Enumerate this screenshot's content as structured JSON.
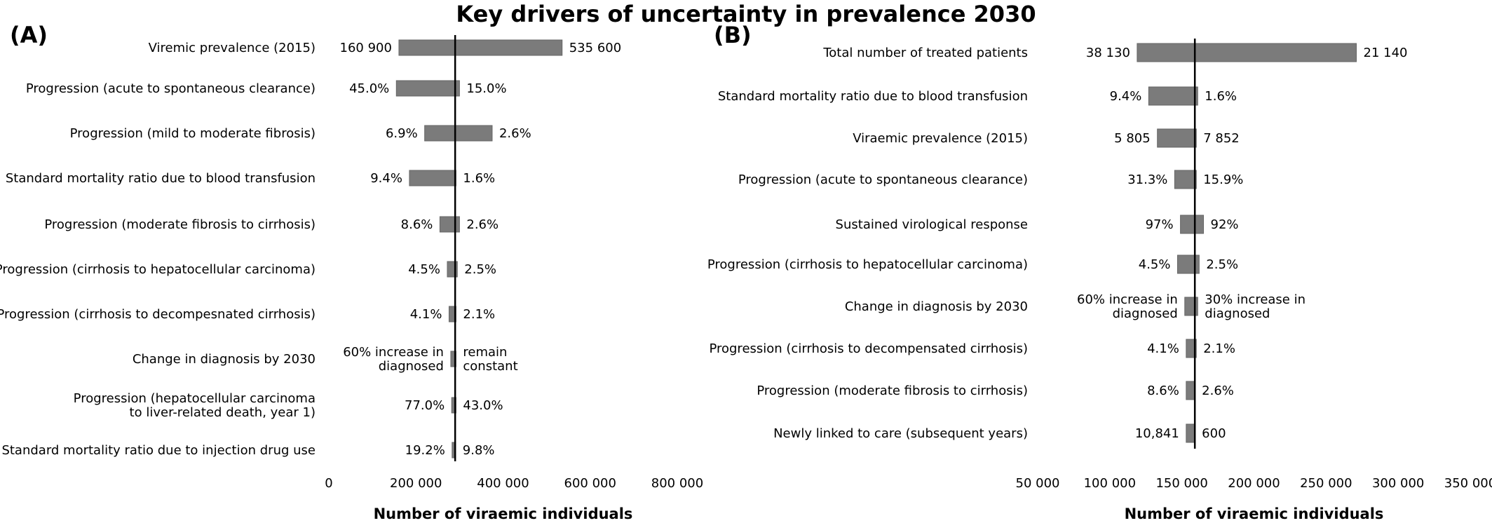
{
  "title": "Key drivers of uncertainty in prevalence 2030",
  "chart_data": [
    {
      "type": "bar",
      "orientation": "horizontal-tornado",
      "panel": "(A)",
      "xlabel": "Number of viraemic individuals",
      "xlim": [
        0,
        800000
      ],
      "xticks": [
        0,
        200000,
        400000,
        600000,
        800000
      ],
      "tick_labels": [
        "0",
        "200 000",
        "400 000",
        "600 000",
        "800 000"
      ],
      "baseline": 290000,
      "rows": [
        {
          "label": [
            "Viremic prevalence (2015)"
          ],
          "low": 160900,
          "high": 535600,
          "left_label": [
            "160  900"
          ],
          "right_label": [
            "535 600"
          ]
        },
        {
          "label": [
            "Progression (acute to spontaneous clearance)"
          ],
          "low": 155000,
          "high": 300000,
          "left_label": [
            "45.0%"
          ],
          "right_label": [
            "15.0%"
          ]
        },
        {
          "label": [
            "Progression (mild to moderate fibrosis)"
          ],
          "low": 220000,
          "high": 375000,
          "left_label": [
            "6.9%"
          ],
          "right_label": [
            "2.6%"
          ]
        },
        {
          "label": [
            "Standard  mortality  ratio due to blood transfusion"
          ],
          "low": 185000,
          "high": 292000,
          "left_label": [
            "9.4%"
          ],
          "right_label": [
            "1.6%"
          ]
        },
        {
          "label": [
            "Progression (moderate fibrosis to cirrhosis)"
          ],
          "low": 255000,
          "high": 300000,
          "left_label": [
            "8.6%"
          ],
          "right_label": [
            "2.6%"
          ]
        },
        {
          "label": [
            "Progression (cirrhosis to hepatocellular carcinoma)"
          ],
          "low": 272000,
          "high": 295000,
          "left_label": [
            "4.5%"
          ],
          "right_label": [
            "2.5%"
          ]
        },
        {
          "label": [
            "Progression (cirrhosis to decompesnated cirrhosis)"
          ],
          "low": 276000,
          "high": 292000,
          "left_label": [
            "4.1%"
          ],
          "right_label": [
            "2.1%"
          ]
        },
        {
          "label": [
            "Change in diagnosis by 2030"
          ],
          "low": 280000,
          "high": 292000,
          "left_label": [
            "60% increase in",
            "diagnosed"
          ],
          "right_label": [
            "remain",
            "constant"
          ]
        },
        {
          "label": [
            "Progression (hepatocellular carcinoma",
            "to liver-related death, year 1)"
          ],
          "low": 282000,
          "high": 292000,
          "left_label": [
            "77.0%"
          ],
          "right_label": [
            "43.0%"
          ]
        },
        {
          "label": [
            "Standard mortality ratio due to injection drug use"
          ],
          "low": 283000,
          "high": 291000,
          "left_label": [
            "19.2%"
          ],
          "right_label": [
            "9.8%"
          ]
        }
      ]
    },
    {
      "type": "bar",
      "orientation": "horizontal-tornado",
      "panel": "(B)",
      "xlabel": "Number of viraemic individuals",
      "xlim": [
        50000,
        350000
      ],
      "xticks": [
        50000,
        100000,
        150000,
        200000,
        250000,
        300000,
        350000
      ],
      "tick_labels": [
        "50 000",
        "100 000",
        "150 000",
        "200 000",
        "250 000",
        "300 000",
        "350 000"
      ],
      "baseline": 159000,
      "rows": [
        {
          "label": [
            "Total number of treated patients"
          ],
          "low": 119000,
          "high": 271000,
          "left_label": [
            "38 130"
          ],
          "right_label": [
            "21 140"
          ]
        },
        {
          "label": [
            "Standard mortality ratio due to  blood  transfusion"
          ],
          "low": 127000,
          "high": 161000,
          "left_label": [
            "9.4%"
          ],
          "right_label": [
            "1.6%"
          ]
        },
        {
          "label": [
            "Viraemic prevalence (2015)"
          ],
          "low": 133000,
          "high": 160000,
          "left_label": [
            "5 805"
          ],
          "right_label": [
            "7 852"
          ]
        },
        {
          "label": [
            "Progression (acute to spontaneous clearance)"
          ],
          "low": 145000,
          "high": 160000,
          "left_label": [
            "31.3%"
          ],
          "right_label": [
            "15.9%"
          ]
        },
        {
          "label": [
            "Sustained virological response"
          ],
          "low": 149000,
          "high": 165000,
          "left_label": [
            "97%"
          ],
          "right_label": [
            "92%"
          ]
        },
        {
          "label": [
            "Progression (cirrhosis to hepatocellular carcinoma)"
          ],
          "low": 147000,
          "high": 162000,
          "left_label": [
            "4.5%"
          ],
          "right_label": [
            "2.5%"
          ]
        },
        {
          "label": [
            "Change in diagnosis by 2030"
          ],
          "low": 152000,
          "high": 161000,
          "left_label": [
            "60% increase in",
            "diagnosed"
          ],
          "right_label": [
            "30% increase in",
            "diagnosed"
          ]
        },
        {
          "label": [
            "Progression (cirrhosis to decompensated cirrhosis)"
          ],
          "low": 153000,
          "high": 160000,
          "left_label": [
            "4.1%"
          ],
          "right_label": [
            "2.1%"
          ]
        },
        {
          "label": [
            "Progression (moderate fibrosis to cirrhosis)"
          ],
          "low": 153000,
          "high": 159000,
          "left_label": [
            "8.6%"
          ],
          "right_label": [
            "2.6%"
          ]
        },
        {
          "label": [
            "Newly linked to care (subsequent years)"
          ],
          "low": 153000,
          "high": 159000,
          "left_label": [
            "10,841"
          ],
          "right_label": [
            "600"
          ]
        }
      ]
    }
  ]
}
